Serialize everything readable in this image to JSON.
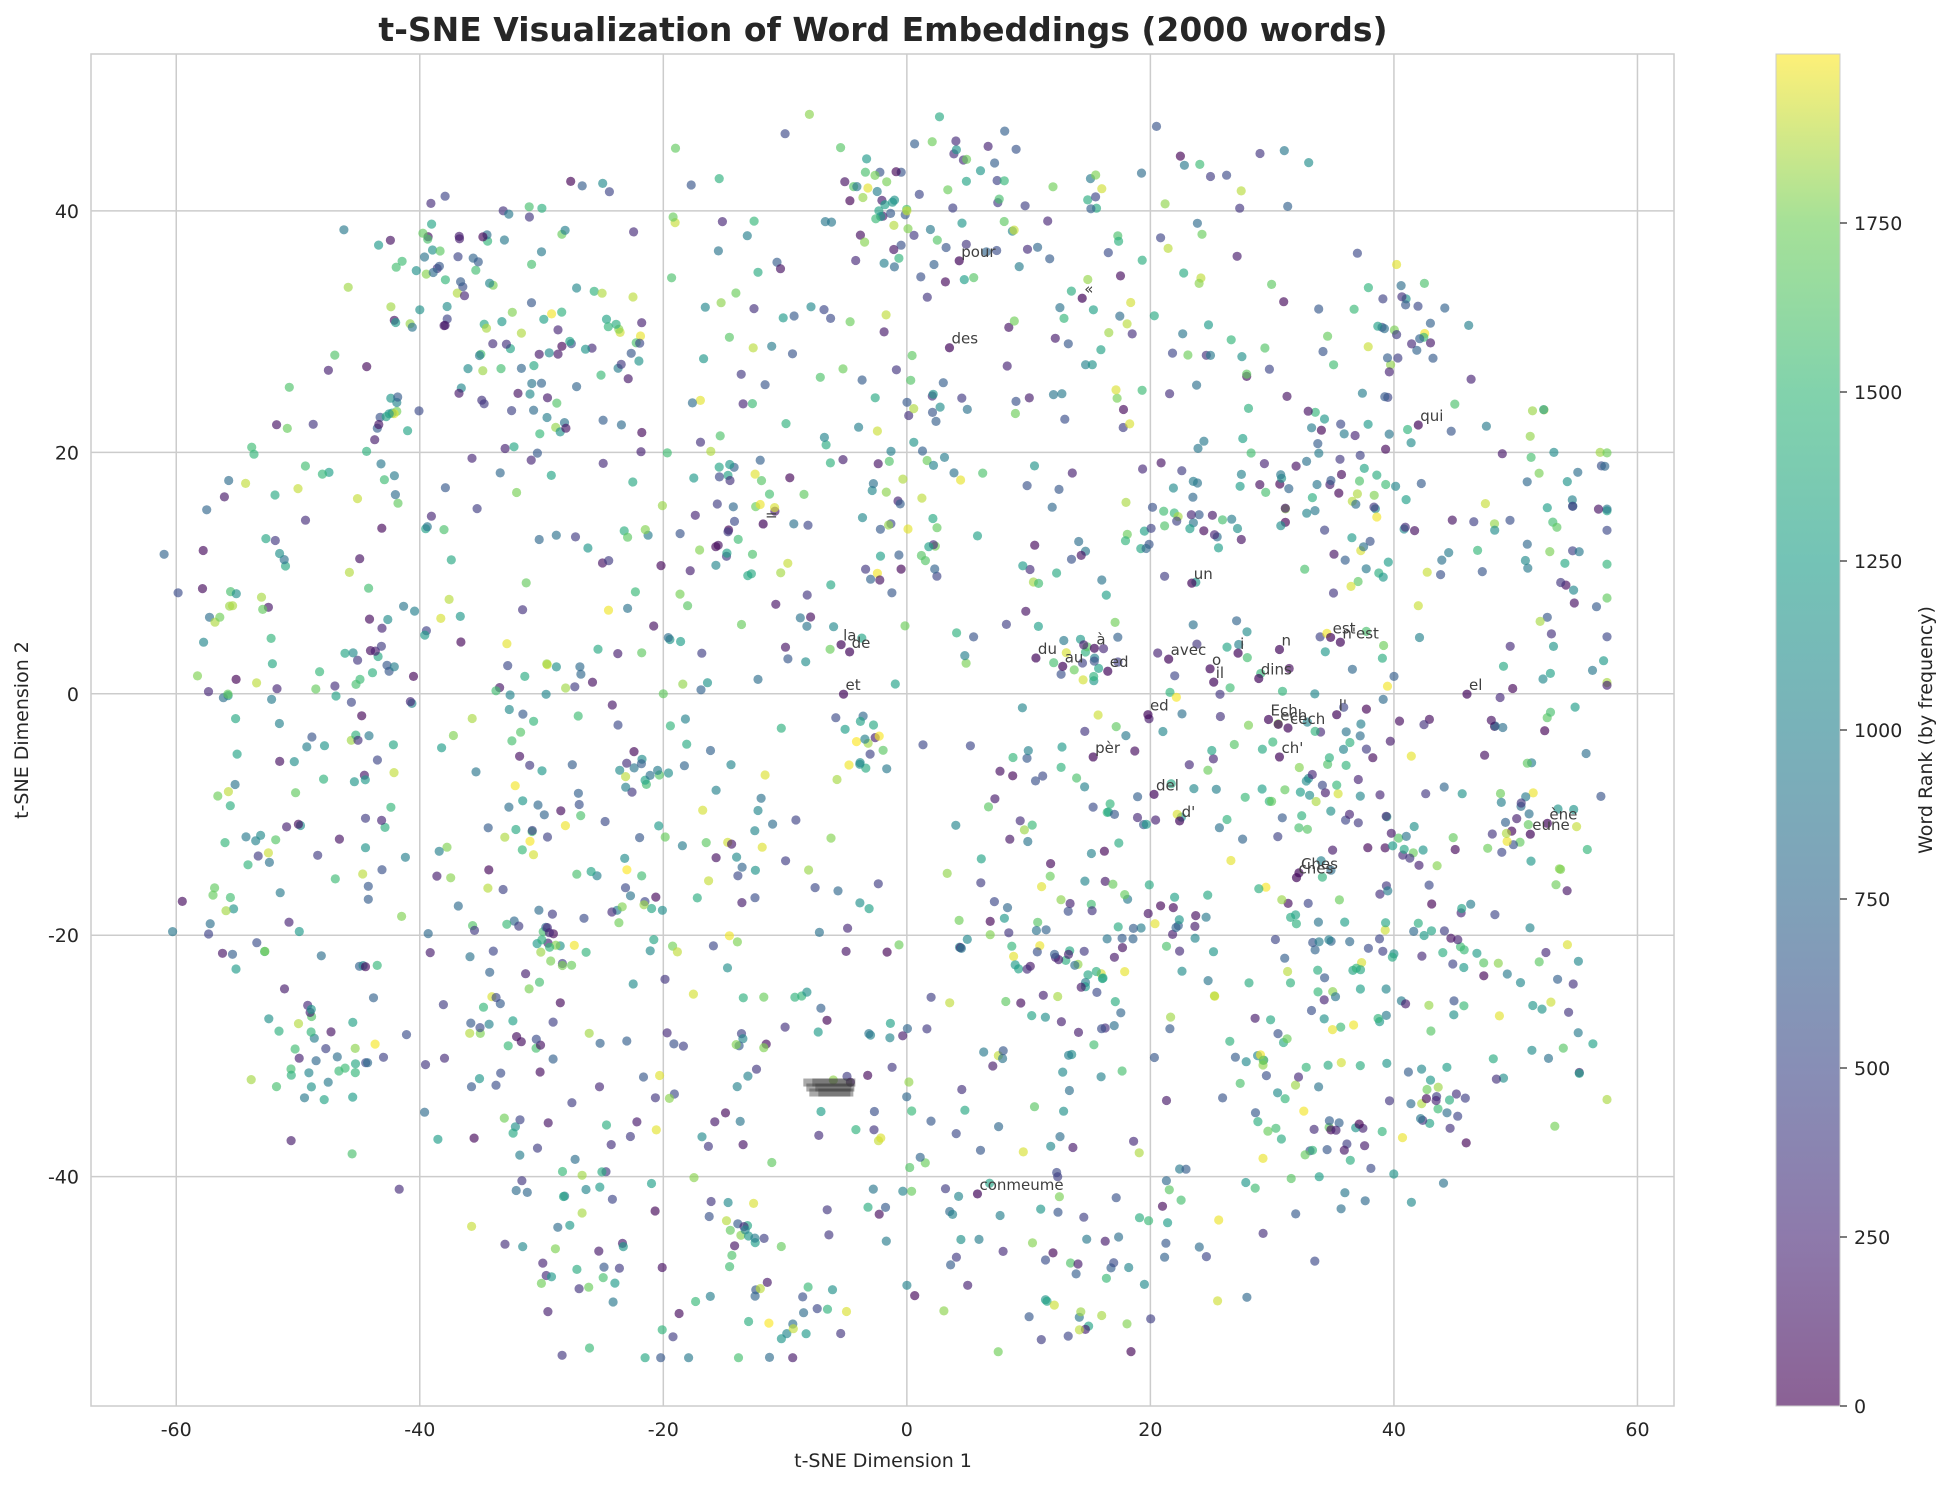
{
  "chart_data": {
    "type": "scatter",
    "title": "t-SNE Visualization of Word Embeddings (2000 words)",
    "xlabel": "t-SNE Dimension 1",
    "ylabel": "t-SNE Dimension 2",
    "xlim": [
      -67,
      63
    ],
    "ylim": [
      -59,
      53
    ],
    "xticks": [
      -60,
      -40,
      -20,
      0,
      20,
      40,
      60
    ],
    "yticks": [
      -40,
      -20,
      0,
      20,
      40
    ],
    "grid": true,
    "colormap": "viridis",
    "point_alpha": 0.65,
    "colorbar": {
      "label": "Word Rank (by frequency)",
      "range": [
        0,
        2000
      ],
      "ticks": [
        0,
        250,
        500,
        750,
        1000,
        1250,
        1500,
        1750
      ]
    },
    "n_points": 2000,
    "sample_points": [
      {
        "x": -60.3,
        "y": -19.7,
        "rank": 900
      },
      {
        "x": -59.5,
        "y": -17.2,
        "rank": 60
      },
      {
        "x": -56.2,
        "y": -21.5,
        "rank": 120
      },
      {
        "x": -55.0,
        "y": -5.0,
        "rank": 1300
      },
      {
        "x": -53.0,
        "y": 8.0,
        "rank": 1850
      },
      {
        "x": -51.5,
        "y": -5.6,
        "rank": 90
      },
      {
        "x": -50.0,
        "y": 17.0,
        "rank": 1900
      },
      {
        "x": -48.0,
        "y": 18.2,
        "rank": 1500
      },
      {
        "x": -43.5,
        "y": -22.5,
        "rank": 1500
      },
      {
        "x": -42.0,
        "y": 16.5,
        "rank": 800
      },
      {
        "x": -38.0,
        "y": 30.5,
        "rank": 150
      },
      {
        "x": -34.0,
        "y": 29.0,
        "rank": 300
      },
      {
        "x": -33.0,
        "y": -45.6,
        "rank": 300
      },
      {
        "x": -31.0,
        "y": 39.5,
        "rank": 350
      },
      {
        "x": -28.0,
        "y": 22.0,
        "rank": 120
      },
      {
        "x": -20.0,
        "y": 0.0,
        "rank": 1700
      },
      {
        "x": -19.0,
        "y": 45.2,
        "rank": 1700
      },
      {
        "x": -13.0,
        "y": -52.0,
        "rank": 1400
      },
      {
        "x": -8.0,
        "y": 48.0,
        "rank": 1800
      },
      {
        "x": -10.0,
        "y": 46.4,
        "rank": 500
      },
      {
        "x": 0.0,
        "y": 40.0,
        "rank": 1900
      },
      {
        "x": 0.0,
        "y": -49.0,
        "rank": 1000
      },
      {
        "x": 5.0,
        "y": -49.0,
        "rank": 200
      },
      {
        "x": 7.5,
        "y": -54.5,
        "rank": 1750
      },
      {
        "x": 8.0,
        "y": 42.5,
        "rank": 1500
      },
      {
        "x": 12.0,
        "y": 42.0,
        "rank": 1750
      },
      {
        "x": 16.0,
        "y": -51.5,
        "rank": 1850
      },
      {
        "x": 20.5,
        "y": 47.0,
        "rank": 600
      },
      {
        "x": 24.0,
        "y": 34.0,
        "rank": 1800
      },
      {
        "x": 31.0,
        "y": 45.0,
        "rank": 900
      },
      {
        "x": 33.0,
        "y": 44.0,
        "rank": 1100
      },
      {
        "x": 33.5,
        "y": -47.0,
        "rank": 500
      },
      {
        "x": 37.0,
        "y": 36.5,
        "rank": 500
      },
      {
        "x": 42.5,
        "y": 34.0,
        "rank": 1600
      },
      {
        "x": 43.0,
        "y": -32.0,
        "rank": 1200
      },
      {
        "x": 45.0,
        "y": 24.0,
        "rank": 1600
      },
      {
        "x": 48.0,
        "y": -2.2,
        "rank": 100
      },
      {
        "x": 52.0,
        "y": 6.0,
        "rank": 1850
      },
      {
        "x": 55.0,
        "y": -11.0,
        "rank": 1900
      },
      {
        "x": 56.8,
        "y": 15.3,
        "rank": 100
      },
      {
        "x": 57.0,
        "y": -8.5,
        "rank": 600
      }
    ],
    "annotations": [
      {
        "text": "pour",
        "x": 4.3,
        "y": 36.2
      },
      {
        "text": "«",
        "x": 14.4,
        "y": 33.1
      },
      {
        "text": "des",
        "x": 3.5,
        "y": 29.0
      },
      {
        "text": "qui",
        "x": 42.0,
        "y": 22.6
      },
      {
        "text": "=",
        "x": -11.8,
        "y": 14.4
      },
      {
        "text": "un",
        "x": 23.4,
        "y": 9.5
      },
      {
        "text": "la",
        "x": -5.4,
        "y": 4.4
      },
      {
        "text": "de",
        "x": -4.7,
        "y": 3.8
      },
      {
        "text": "à",
        "x": 15.4,
        "y": 4.1
      },
      {
        "text": "du",
        "x": 10.6,
        "y": 3.3
      },
      {
        "text": "au",
        "x": 12.8,
        "y": 2.6
      },
      {
        "text": "avec",
        "x": 21.5,
        "y": 3.2
      },
      {
        "text": "i",
        "x": 27.2,
        "y": 3.7
      },
      {
        "text": "n",
        "x": 30.6,
        "y": 4.0
      },
      {
        "text": "est",
        "x": 34.8,
        "y": 5.0
      },
      {
        "text": "n'est",
        "x": 35.6,
        "y": 4.6
      },
      {
        "text": "ed",
        "x": 16.5,
        "y": 2.2
      },
      {
        "text": "o",
        "x": 24.9,
        "y": 2.4
      },
      {
        "text": "il",
        "x": 25.2,
        "y": 1.3
      },
      {
        "text": "dins",
        "x": 28.9,
        "y": 1.6
      },
      {
        "text": "et",
        "x": -5.2,
        "y": 0.3
      },
      {
        "text": "el",
        "x": 46.0,
        "y": 0.3
      },
      {
        "text": "ed",
        "x": 19.8,
        "y": -1.4
      },
      {
        "text": "l'",
        "x": 35.3,
        "y": -1.4
      },
      {
        "text": "Ech",
        "x": 29.7,
        "y": -1.8
      },
      {
        "text": "ech",
        "x": 30.5,
        "y": -2.2
      },
      {
        "text": "cech",
        "x": 31.3,
        "y": -2.5
      },
      {
        "text": "pèr",
        "x": 15.3,
        "y": -4.9
      },
      {
        "text": "ch'",
        "x": 30.6,
        "y": -4.9
      },
      {
        "text": "del",
        "x": 20.3,
        "y": -8.0
      },
      {
        "text": "d'",
        "x": 22.4,
        "y": -10.2
      },
      {
        "text": "ène",
        "x": 52.6,
        "y": -10.4
      },
      {
        "text": "eune",
        "x": 51.2,
        "y": -11.3
      },
      {
        "text": "Ches",
        "x": 32.2,
        "y": -14.5
      },
      {
        "text": "ches",
        "x": 32.0,
        "y": -14.9
      },
      {
        "text": "conmeume",
        "x": 5.8,
        "y": -41.1
      }
    ],
    "overlapping_annotation_cluster": {
      "x": -8.5,
      "y": -32.7,
      "note": "several overlapping illegible word labels"
    }
  }
}
